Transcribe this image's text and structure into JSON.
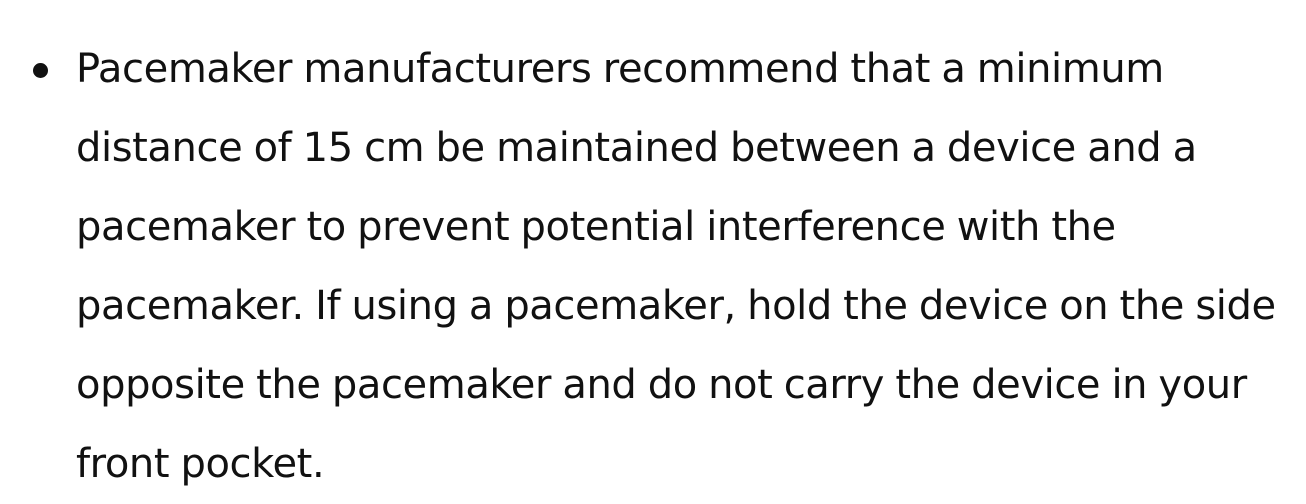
{
  "document": {
    "bullets": [
      {
        "text": "Pacemaker manufacturers recommend that a minimum distance of 15 cm be maintained between a device and a pacemaker to prevent potential interference with the pacemaker. If using a pacemaker, hold the device on the side opposite the pacemaker and do not carry the device in your front pocket."
      }
    ]
  }
}
